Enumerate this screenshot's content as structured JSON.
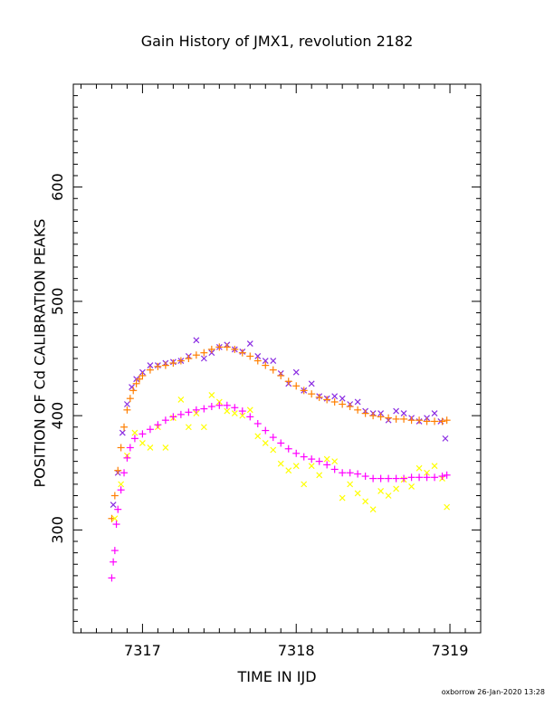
{
  "footer": "oxborrow 26-Jan-2020 13:28",
  "colors": {
    "purple_x": "#8a2be2",
    "orange_plus": "#ff7f00",
    "yellow_x": "#ffff00",
    "magenta_plus": "#ff00ff",
    "axis": "#000000"
  },
  "chart_data": {
    "type": "scatter",
    "title": "Gain History of JMX1, revolution 2182",
    "xlabel": "TIME IN IJD",
    "ylabel": "POSITION OF Cd CALIBRATION PEAKS",
    "xlim": [
      7316.55,
      7319.2
    ],
    "ylim": [
      210,
      690
    ],
    "xticks": [
      7317,
      7318,
      7319
    ],
    "xtick_labels": [
      "7317",
      "7318",
      "7319"
    ],
    "yticks": [
      300,
      400,
      500,
      600
    ],
    "ytick_labels": [
      "300",
      "400",
      "500",
      "600"
    ],
    "grid": false,
    "legend": "none",
    "series": [
      {
        "color": "#8a2be2",
        "marker": "x",
        "x": [
          7316.81,
          7316.84,
          7316.87,
          7316.9,
          7316.93,
          7316.96,
          7317.0,
          7317.05,
          7317.1,
          7317.15,
          7317.2,
          7317.25,
          7317.3,
          7317.35,
          7317.4,
          7317.45,
          7317.5,
          7317.55,
          7317.6,
          7317.65,
          7317.7,
          7317.75,
          7317.8,
          7317.85,
          7317.9,
          7317.95,
          7318.0,
          7318.05,
          7318.1,
          7318.15,
          7318.2,
          7318.25,
          7318.3,
          7318.35,
          7318.4,
          7318.45,
          7318.5,
          7318.55,
          7318.6,
          7318.65,
          7318.7,
          7318.75,
          7318.8,
          7318.85,
          7318.9,
          7318.94,
          7318.97
        ],
        "y": [
          322,
          350,
          385,
          410,
          425,
          432,
          438,
          444,
          444,
          446,
          447,
          448,
          452,
          466,
          450,
          455,
          460,
          462,
          458,
          456,
          463,
          452,
          448,
          448,
          437,
          428,
          438,
          422,
          428,
          417,
          415,
          417,
          415,
          410,
          412,
          404,
          402,
          402,
          396,
          404,
          402,
          398,
          395,
          398,
          402,
          395,
          380
        ]
      },
      {
        "color": "#ff7f00",
        "marker": "+",
        "x": [
          7316.8,
          7316.82,
          7316.84,
          7316.86,
          7316.88,
          7316.9,
          7316.92,
          7316.94,
          7316.96,
          7316.98,
          7317.0,
          7317.05,
          7317.1,
          7317.15,
          7317.2,
          7317.25,
          7317.3,
          7317.35,
          7317.4,
          7317.45,
          7317.5,
          7317.55,
          7317.6,
          7317.65,
          7317.7,
          7317.75,
          7317.8,
          7317.85,
          7317.9,
          7317.95,
          7318.0,
          7318.05,
          7318.1,
          7318.15,
          7318.2,
          7318.25,
          7318.3,
          7318.35,
          7318.4,
          7318.45,
          7318.5,
          7318.55,
          7318.6,
          7318.65,
          7318.7,
          7318.75,
          7318.8,
          7318.85,
          7318.9,
          7318.95,
          7318.98
        ],
        "y": [
          310,
          330,
          352,
          372,
          390,
          405,
          415,
          422,
          428,
          432,
          435,
          440,
          443,
          444,
          446,
          448,
          450,
          453,
          455,
          458,
          460,
          460,
          458,
          455,
          452,
          448,
          444,
          440,
          435,
          430,
          426,
          422,
          419,
          416,
          414,
          412,
          410,
          408,
          405,
          402,
          400,
          399,
          398,
          397,
          397,
          396,
          396,
          395,
          395,
          395,
          396
        ]
      },
      {
        "color": "#ffff00",
        "marker": "x",
        "x": [
          7316.82,
          7316.86,
          7316.9,
          7316.95,
          7317.0,
          7317.05,
          7317.1,
          7317.15,
          7317.2,
          7317.25,
          7317.3,
          7317.35,
          7317.4,
          7317.45,
          7317.5,
          7317.55,
          7317.6,
          7317.65,
          7317.7,
          7317.75,
          7317.8,
          7317.85,
          7317.9,
          7317.95,
          7318.0,
          7318.05,
          7318.1,
          7318.15,
          7318.2,
          7318.25,
          7318.3,
          7318.35,
          7318.4,
          7318.45,
          7318.5,
          7318.55,
          7318.6,
          7318.65,
          7318.7,
          7318.75,
          7318.8,
          7318.85,
          7318.9,
          7318.95,
          7318.98
        ],
        "y": [
          310,
          340,
          365,
          385,
          376,
          372,
          390,
          372,
          398,
          414,
          390,
          402,
          390,
          418,
          412,
          404,
          402,
          400,
          405,
          382,
          376,
          370,
          358,
          352,
          356,
          340,
          356,
          348,
          362,
          360,
          328,
          340,
          332,
          325,
          318,
          334,
          330,
          336,
          344,
          338,
          354,
          350,
          356,
          345,
          320
        ]
      },
      {
        "color": "#ff00ff",
        "marker": "+",
        "x": [
          7316.8,
          7316.81,
          7316.82,
          7316.83,
          7316.84,
          7316.86,
          7316.88,
          7316.9,
          7316.92,
          7316.95,
          7317.0,
          7317.05,
          7317.1,
          7317.15,
          7317.2,
          7317.25,
          7317.3,
          7317.35,
          7317.4,
          7317.45,
          7317.5,
          7317.55,
          7317.6,
          7317.65,
          7317.7,
          7317.75,
          7317.8,
          7317.85,
          7317.9,
          7317.95,
          7318.0,
          7318.05,
          7318.1,
          7318.15,
          7318.2,
          7318.25,
          7318.3,
          7318.35,
          7318.4,
          7318.45,
          7318.5,
          7318.55,
          7318.6,
          7318.65,
          7318.7,
          7318.75,
          7318.8,
          7318.85,
          7318.9,
          7318.95,
          7318.98
        ],
        "y": [
          258,
          272,
          282,
          305,
          318,
          335,
          350,
          363,
          372,
          380,
          384,
          388,
          392,
          396,
          399,
          401,
          403,
          405,
          406,
          408,
          409,
          409,
          407,
          404,
          399,
          393,
          387,
          381,
          376,
          371,
          367,
          364,
          362,
          360,
          357,
          353,
          350,
          350,
          349,
          347,
          345,
          345,
          345,
          345,
          345,
          346,
          346,
          346,
          346,
          347,
          348
        ]
      }
    ]
  }
}
